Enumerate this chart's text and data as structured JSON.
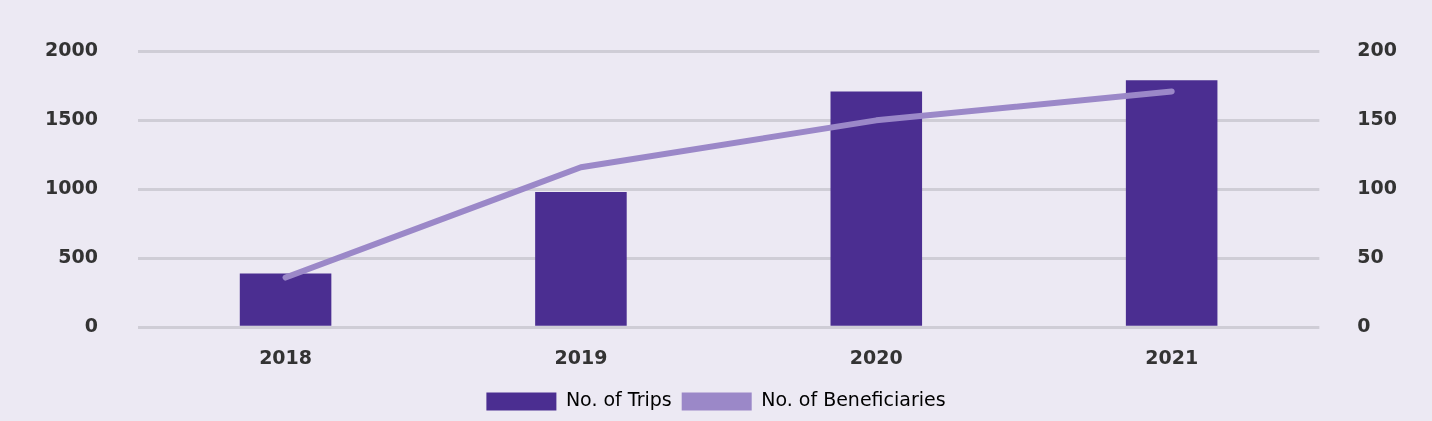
{
  "chart_data": {
    "type": "bar",
    "categories": [
      "2018",
      "2019",
      "2020",
      "2021"
    ],
    "series": [
      {
        "name": "No. of Trips",
        "color": "#4b2e91",
        "values": [
          390,
          980,
          1710,
          1790
        ]
      },
      {
        "name": "No. of Beneficiaries",
        "type": "line",
        "axis": "y2",
        "color": "#9b88c8",
        "values": [
          36,
          116,
          150,
          171
        ]
      }
    ],
    "ylim": [
      0,
      2000
    ],
    "yticks": [
      0,
      500,
      1000,
      1500,
      2000
    ],
    "y2lim": [
      0,
      200
    ],
    "y2ticks": [
      0,
      50,
      100,
      150,
      200
    ],
    "grid": "y",
    "legend": "bottom",
    "marker": "none",
    "line_style": "solid"
  }
}
